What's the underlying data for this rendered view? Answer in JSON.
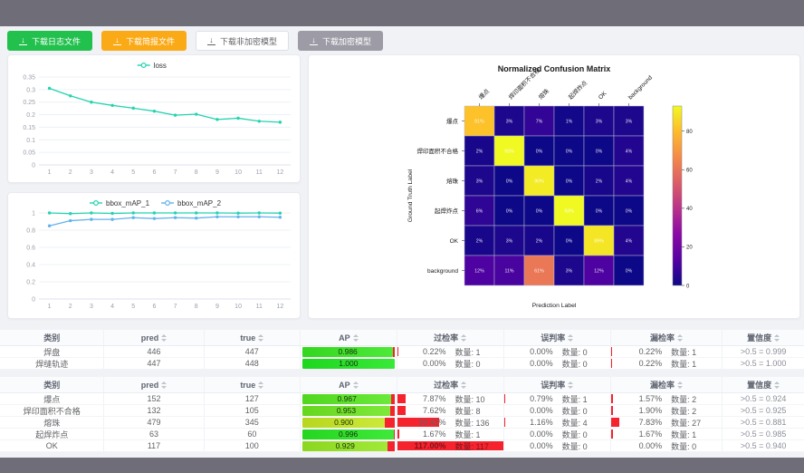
{
  "colors": {
    "accent_teal": "#25d3b0",
    "accent_blue": "#63b2ee",
    "bar_red": "#f5232d",
    "frame_gray": "#6f6e78",
    "page_bg": "#f0f2f5",
    "btn_green": "#22c14e",
    "btn_orange": "#fbaa17",
    "btn_gray": "#9d9ba5"
  },
  "toolbar": {
    "buttons": [
      {
        "label": "下载日志文件",
        "style": "green"
      },
      {
        "label": "下载简报文件",
        "style": "orange"
      },
      {
        "label": "下载非加密模型",
        "style": "white"
      },
      {
        "label": "下载加密模型",
        "style": "gray"
      }
    ]
  },
  "chart_data": [
    {
      "type": "line",
      "title": "loss",
      "legend": [
        "loss"
      ],
      "legend_position": "top-center",
      "grid": true,
      "x": [
        1,
        2,
        3,
        4,
        5,
        6,
        7,
        8,
        9,
        10,
        11,
        12
      ],
      "ylim": [
        0,
        0.35
      ],
      "yticks": [
        0,
        0.05,
        0.1,
        0.15,
        0.2,
        0.25,
        0.3,
        0.35
      ],
      "series": [
        {
          "name": "loss",
          "color": "#25d3b0",
          "values": [
            0.305,
            0.275,
            0.25,
            0.237,
            0.226,
            0.214,
            0.198,
            0.202,
            0.181,
            0.186,
            0.174,
            0.17
          ]
        }
      ]
    },
    {
      "type": "line",
      "title": "bbox_mAP",
      "legend": [
        "bbox_mAP_1",
        "bbox_mAP_2"
      ],
      "legend_position": "top-center",
      "grid": true,
      "x": [
        1,
        2,
        3,
        4,
        5,
        6,
        7,
        8,
        9,
        10,
        11,
        12
      ],
      "ylim": [
        0,
        1
      ],
      "yticks": [
        0,
        0.2,
        0.4,
        0.6,
        0.8,
        1
      ],
      "series": [
        {
          "name": "bbox_mAP_1",
          "color": "#25d3b0",
          "values": [
            1,
            0.992,
            1,
            0.995,
            1,
            1,
            1,
            1,
            1,
            0.998,
            1,
            0.998
          ]
        },
        {
          "name": "bbox_mAP_2",
          "color": "#63b2ee",
          "values": [
            0.85,
            0.91,
            0.925,
            0.925,
            0.945,
            0.935,
            0.945,
            0.94,
            0.955,
            0.955,
            0.955,
            0.95
          ]
        }
      ]
    },
    {
      "type": "heatmap",
      "title": "Normalized Confusion Matrix",
      "xlabel": "Prediction Label",
      "ylabel": "Ground Truth Label",
      "colormap": "plasma",
      "vmax": 93,
      "colorbar_ticks": [
        0,
        20,
        40,
        60,
        80
      ],
      "labels": [
        "爆点",
        "焊印面积不合格",
        "熔珠",
        "起焊炸点",
        "OK",
        "background"
      ],
      "values": [
        [
          81,
          3,
          7,
          1,
          3,
          3
        ],
        [
          2,
          93,
          0,
          0,
          0,
          4
        ],
        [
          3,
          0,
          90,
          0,
          2,
          4
        ],
        [
          6,
          0,
          0,
          93,
          0,
          0
        ],
        [
          2,
          3,
          2,
          0,
          89,
          4
        ],
        [
          12,
          11,
          61,
          3,
          12,
          0
        ]
      ],
      "cell_suffix": "%"
    }
  ],
  "tables": [
    {
      "headers": [
        {
          "label": "类别",
          "sortable": false
        },
        {
          "label": "pred",
          "sortable": true
        },
        {
          "label": "true",
          "sortable": true
        },
        {
          "label": "AP",
          "sortable": true
        },
        {
          "label": "过检率",
          "sortable": true
        },
        {
          "label": "误判率",
          "sortable": true
        },
        {
          "label": "漏检率",
          "sortable": true
        },
        {
          "label": "置信度",
          "sortable": true
        }
      ],
      "rows": [
        {
          "label": "焊盘",
          "pred": "446",
          "true": "447",
          "ap": 0.986,
          "ap_text": "0.986",
          "over_pct": 0.22,
          "over_text": "0.22%",
          "over_count": "数量: 1",
          "mis_pct": 0,
          "mis_text": "0.00%",
          "mis_count": "数量: 0",
          "miss_pct": 0.22,
          "miss_text": "0.22%",
          "miss_count": "数量: 1",
          "conf": ">0.5 = 0.999"
        },
        {
          "label": "焊缝轨迹",
          "pred": "447",
          "true": "448",
          "ap": 1.0,
          "ap_text": "1.000",
          "over_pct": 0,
          "over_text": "0.00%",
          "over_count": "数量: 0",
          "mis_pct": 0,
          "mis_text": "0.00%",
          "mis_count": "数量: 0",
          "miss_pct": 0.22,
          "miss_text": "0.22%",
          "miss_count": "数量: 1",
          "conf": ">0.5 = 1.000"
        }
      ]
    },
    {
      "headers": [
        {
          "label": "类别",
          "sortable": false
        },
        {
          "label": "pred",
          "sortable": true
        },
        {
          "label": "true",
          "sortable": true
        },
        {
          "label": "AP",
          "sortable": true
        },
        {
          "label": "过检率",
          "sortable": true
        },
        {
          "label": "误判率",
          "sortable": true
        },
        {
          "label": "漏检率",
          "sortable": true
        },
        {
          "label": "置信度",
          "sortable": true
        }
      ],
      "rows": [
        {
          "label": "爆点",
          "pred": "152",
          "true": "127",
          "ap": 0.967,
          "ap_text": "0.967",
          "over_pct": 7.87,
          "over_text": "7.87%",
          "over_count": "数量: 10",
          "mis_pct": 0.79,
          "mis_text": "0.79%",
          "mis_count": "数量: 1",
          "miss_pct": 1.57,
          "miss_text": "1.57%",
          "miss_count": "数量: 2",
          "conf": ">0.5 = 0.924"
        },
        {
          "label": "焊印面积不合格",
          "pred": "132",
          "true": "105",
          "ap": 0.953,
          "ap_text": "0.953",
          "over_pct": 7.62,
          "over_text": "7.62%",
          "over_count": "数量: 8",
          "mis_pct": 0,
          "mis_text": "0.00%",
          "mis_count": "数量: 0",
          "miss_pct": 1.9,
          "miss_text": "1.90%",
          "miss_count": "数量: 2",
          "conf": ">0.5 = 0.925"
        },
        {
          "label": "熔珠",
          "pred": "479",
          "true": "345",
          "ap": 0.9,
          "ap_text": "0.900",
          "over_pct": 39.42,
          "over_text": "39.42%",
          "over_count": "数量: 136",
          "mis_pct": 1.16,
          "mis_text": "1.16%",
          "mis_count": "数量: 4",
          "miss_pct": 7.83,
          "miss_text": "7.83%",
          "miss_count": "数量: 27",
          "conf": ">0.5 = 0.881"
        },
        {
          "label": "起焊炸点",
          "pred": "63",
          "true": "60",
          "ap": 0.996,
          "ap_text": "0.996",
          "over_pct": 1.67,
          "over_text": "1.67%",
          "over_count": "数量: 1",
          "mis_pct": 0,
          "mis_text": "0.00%",
          "mis_count": "数量: 0",
          "miss_pct": 1.67,
          "miss_text": "1.67%",
          "miss_count": "数量: 1",
          "conf": ">0.5 = 0.985"
        },
        {
          "label": "OK",
          "pred": "117",
          "true": "100",
          "ap": 0.929,
          "ap_text": "0.929",
          "over_pct": 117,
          "over_text": "117.00%",
          "over_count": "数量: 117",
          "mis_pct": 0,
          "mis_text": "0.00%",
          "mis_count": "数量: 0",
          "miss_pct": 0,
          "miss_text": "0.00%",
          "miss_count": "数量: 0",
          "conf": ">0.5 = 0.940"
        }
      ]
    }
  ]
}
